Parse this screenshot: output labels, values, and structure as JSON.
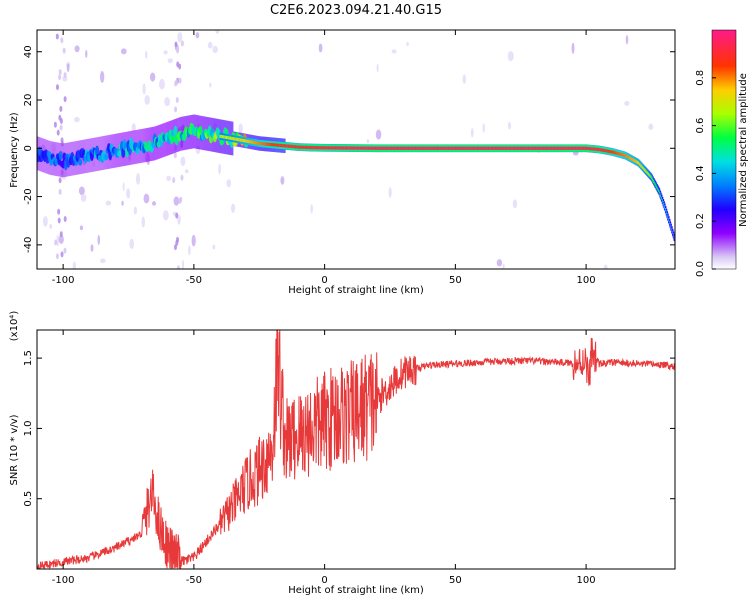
{
  "title": "C2E6.2023.094.21.40.G15",
  "chart_data": [
    {
      "type": "heatmap",
      "xlabel": "Height of straight line (km)",
      "ylabel": "Frequency (Hz)",
      "xlim": [
        -110,
        134
      ],
      "ylim": [
        -50,
        49
      ],
      "xticks": [
        -100,
        -50,
        0,
        50,
        100
      ],
      "yticks": [
        -40,
        -20,
        0,
        20,
        40
      ],
      "colorbar": {
        "label": "Normalized spectral amplitude",
        "range": [
          0,
          1
        ],
        "ticks": [
          "0.0",
          "0.2",
          "0.4",
          "0.6",
          "0.8"
        ],
        "colors": [
          "#ffffff",
          "#c4a8f0",
          "#7a00ff",
          "#0000ff",
          "#00c8ff",
          "#00ff60",
          "#ccff00",
          "#ff9900",
          "#ff0000",
          "#ff33aa"
        ]
      },
      "ridge": {
        "x": [
          -110,
          -105,
          -100,
          -95,
          -90,
          -85,
          -80,
          -75,
          -70,
          -65,
          -60,
          -55,
          -50,
          -45,
          -40,
          -35,
          -30,
          -25,
          -20,
          -15,
          -10,
          -5,
          0,
          10,
          20,
          40,
          60,
          80,
          100,
          105,
          110,
          115,
          120,
          125,
          128,
          130,
          132,
          134
        ],
        "y": [
          -2,
          -4,
          -5,
          -4,
          -3,
          -2,
          -1,
          0,
          1,
          2,
          4,
          6,
          7,
          6,
          5,
          4,
          3,
          2,
          1.5,
          1,
          0.5,
          0.3,
          0.2,
          0.1,
          0,
          0,
          0,
          0,
          0,
          -0.5,
          -1.5,
          -3,
          -6,
          -12,
          -18,
          -24,
          -31,
          -38
        ],
        "amplitude": [
          0.3,
          0.35,
          0.35,
          0.4,
          0.4,
          0.4,
          0.45,
          0.45,
          0.45,
          0.5,
          0.5,
          0.55,
          0.55,
          0.6,
          0.65,
          0.7,
          0.75,
          0.8,
          0.85,
          0.9,
          0.9,
          0.92,
          0.92,
          0.95,
          0.95,
          0.95,
          0.95,
          0.95,
          0.95,
          0.9,
          0.85,
          0.8,
          0.75,
          0.6,
          0.5,
          0.45,
          0.4,
          0.35
        ]
      }
    },
    {
      "type": "line",
      "xlabel": "Height of straight line (km)",
      "ylabel": "SNR (10 * v/v)",
      "yscale_note": "(x10⁴)",
      "xlim": [
        -110,
        134
      ],
      "ylim": [
        0,
        1.7
      ],
      "xticks": [
        -100,
        -50,
        0,
        50,
        100
      ],
      "yticks": [
        0.5,
        1.0,
        1.5
      ],
      "ytick_labels": [
        "0.5",
        "1.0",
        "1.5"
      ],
      "color": "#e8393a",
      "series": [
        {
          "x": [
            -110,
            -100,
            -90,
            -80,
            -70,
            -66,
            -63,
            -60,
            -55,
            -50,
            -45,
            -40,
            -35,
            -30,
            -25,
            -20,
            -18,
            -15,
            -10,
            -5,
            0,
            5,
            10,
            15,
            20,
            25,
            30,
            40,
            50,
            60,
            70,
            80,
            90,
            97,
            100,
            101,
            102,
            105,
            110,
            120,
            130,
            134
          ],
          "y": [
            0.02,
            0.05,
            0.08,
            0.15,
            0.25,
            0.55,
            0.3,
            0.15,
            0.05,
            0.08,
            0.2,
            0.32,
            0.45,
            0.6,
            0.7,
            0.85,
            1.5,
            0.9,
            0.95,
            1.0,
            1.05,
            1.1,
            1.1,
            1.15,
            1.2,
            1.3,
            1.4,
            1.45,
            1.46,
            1.47,
            1.48,
            1.48,
            1.47,
            1.46,
            1.5,
            1.3,
            1.55,
            1.46,
            1.47,
            1.46,
            1.45,
            1.44
          ]
        }
      ]
    }
  ]
}
